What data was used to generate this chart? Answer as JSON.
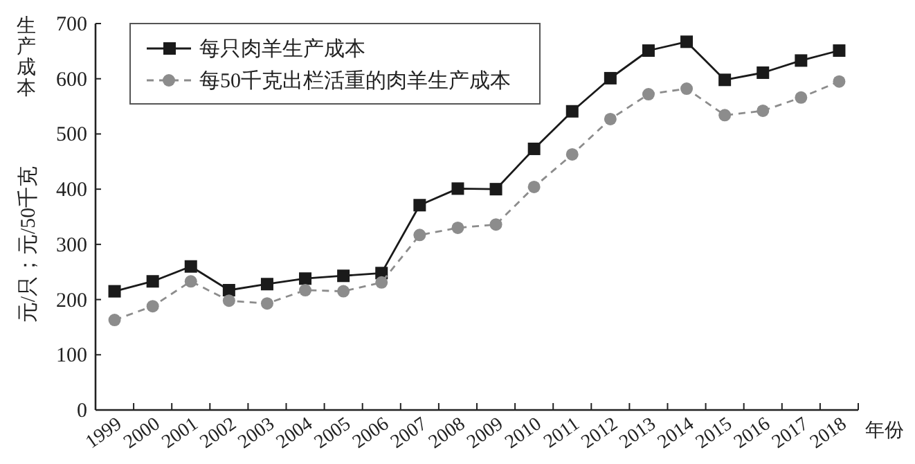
{
  "chart_data": {
    "type": "line",
    "ylabel": "生产成本",
    "xlabel": "年份",
    "annotations": [
      "元/只；元/50千克"
    ],
    "categories": [
      "1999",
      "2000",
      "2001",
      "2002",
      "2003",
      "2004",
      "2005",
      "2006",
      "2007",
      "2008",
      "2009",
      "2010",
      "2011",
      "2012",
      "2013",
      "2014",
      "2015",
      "2016",
      "2017",
      "2018"
    ],
    "series": [
      {
        "name": "每只肉羊生产成本",
        "color": "#1a1a1a",
        "marker": "square",
        "line_style": "solid",
        "values": [
          215,
          233,
          260,
          217,
          228,
          238,
          243,
          248,
          371,
          401,
          400,
          473,
          541,
          601,
          651,
          667,
          598,
          611,
          633,
          651
        ]
      },
      {
        "name": "每50千克出栏活重的肉羊生产成本",
        "color": "#8c8c8c",
        "marker": "circle",
        "line_style": "dashed",
        "values": [
          163,
          188,
          233,
          198,
          193,
          217,
          215,
          231,
          317,
          330,
          336,
          404,
          463,
          527,
          572,
          582,
          534,
          542,
          566,
          595
        ]
      }
    ],
    "ylim": [
      0,
      700
    ],
    "yticks": [
      0,
      100,
      200,
      300,
      400,
      500,
      600,
      700
    ],
    "grid": false,
    "legend": "top left"
  }
}
